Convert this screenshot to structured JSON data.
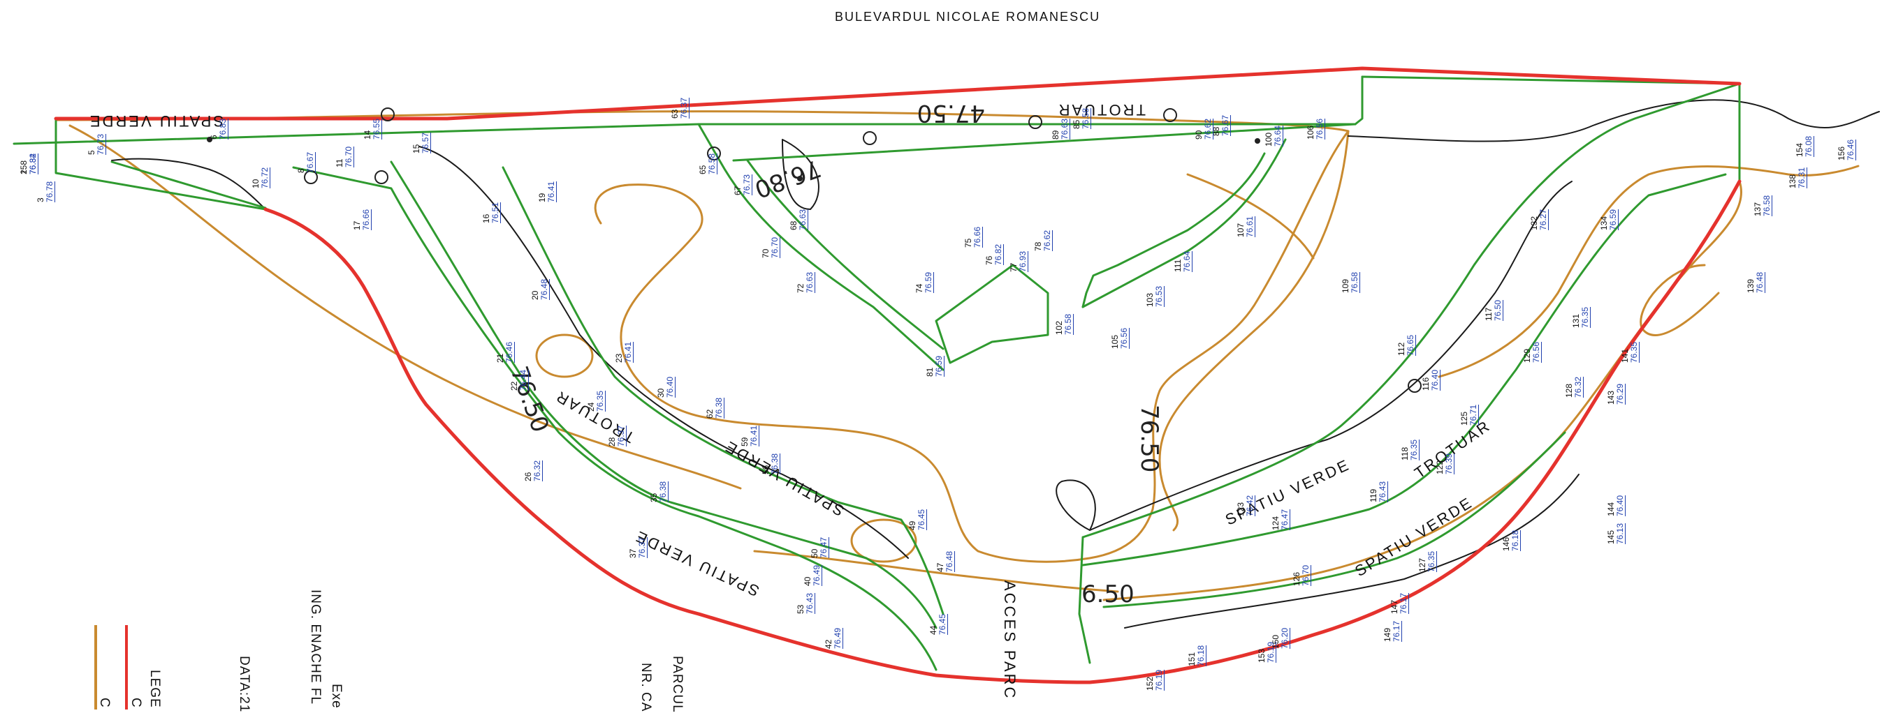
{
  "header": {
    "street": "BULEVARDUL NICOLAE ROMANESCU"
  },
  "zone_labels": {
    "spatiu_verde": "SPATIU VERDE",
    "trotuar": "TROTUAR",
    "acces_parc": "ACCES PARC"
  },
  "contours": {
    "c1": "47.50",
    "c2": "76.50",
    "c3": "76.50",
    "c4": "76.50",
    "c5": "76.80",
    "c6": "6.50"
  },
  "title_block": {
    "executant": "Exe",
    "engineer": "ING. ENACHE FL",
    "date": "DATA:21",
    "project": "PARCUL",
    "number": "NR. CA"
  },
  "legend": {
    "title": "LEGE",
    "item_red": "C",
    "item_orange": "C"
  },
  "colors": {
    "red": "#e5322d",
    "green": "#2f9a2f",
    "orange": "#c98a2f",
    "black": "#1a1a1a",
    "blue": "#1f3fae",
    "magenta": "#d0237a"
  },
  "survey_points": [
    {
      "n": "2",
      "v": "76.84"
    },
    {
      "n": "3",
      "v": "76.78"
    },
    {
      "n": "5",
      "v": "76.73"
    },
    {
      "n": "6",
      "v": "76.83"
    },
    {
      "n": "8",
      "v": "76.67"
    },
    {
      "n": "10",
      "v": "76.72"
    },
    {
      "n": "11",
      "v": "76.70"
    },
    {
      "n": "14",
      "v": "76.55"
    },
    {
      "n": "15",
      "v": "76.57"
    },
    {
      "n": "16",
      "v": "76.51"
    },
    {
      "n": "17",
      "v": "76.66"
    },
    {
      "n": "19",
      "v": "76.41"
    },
    {
      "n": "20",
      "v": "76.48"
    },
    {
      "n": "21",
      "v": "76.46"
    },
    {
      "n": "22",
      "v": "76.44"
    },
    {
      "n": "23",
      "v": "76.41"
    },
    {
      "n": "24",
      "v": "76.35"
    },
    {
      "n": "26",
      "v": "76.32"
    },
    {
      "n": "28",
      "v": "76.37"
    },
    {
      "n": "30",
      "v": "76.40"
    },
    {
      "n": "35",
      "v": "76.38"
    },
    {
      "n": "37",
      "v": "76.37"
    },
    {
      "n": "40",
      "v": "76.49"
    },
    {
      "n": "42",
      "v": "76.49"
    },
    {
      "n": "44",
      "v": "76.45"
    },
    {
      "n": "47",
      "v": "76.48"
    },
    {
      "n": "49",
      "v": "76.45"
    },
    {
      "n": "50",
      "v": "76.47"
    },
    {
      "n": "53",
      "v": "76.43"
    },
    {
      "n": "56",
      "v": "76.38"
    },
    {
      "n": "59",
      "v": "76.41"
    },
    {
      "n": "62",
      "v": "76.38"
    },
    {
      "n": "63",
      "v": "76.37"
    },
    {
      "n": "65",
      "v": "76.58"
    },
    {
      "n": "67",
      "v": "76.73"
    },
    {
      "n": "68",
      "v": "76.63"
    },
    {
      "n": "70",
      "v": "76.70"
    },
    {
      "n": "72",
      "v": "76.63"
    },
    {
      "n": "74",
      "v": "76.59"
    },
    {
      "n": "75",
      "v": "76.66"
    },
    {
      "n": "76",
      "v": "76.82"
    },
    {
      "n": "77",
      "v": "76.93"
    },
    {
      "n": "78",
      "v": "76.62"
    },
    {
      "n": "81",
      "v": "76.59"
    },
    {
      "n": "85",
      "v": "76.58"
    },
    {
      "n": "88",
      "v": "76.67"
    },
    {
      "n": "89",
      "v": "76.63"
    },
    {
      "n": "90",
      "v": "76.62"
    },
    {
      "n": "100",
      "v": "76.64"
    },
    {
      "n": "102",
      "v": "76.58"
    },
    {
      "n": "103",
      "v": "76.53"
    },
    {
      "n": "105",
      "v": "76.56"
    },
    {
      "n": "106",
      "v": "76.56"
    },
    {
      "n": "107",
      "v": "76.61"
    },
    {
      "n": "109",
      "v": "76.58"
    },
    {
      "n": "111",
      "v": "76.64"
    },
    {
      "n": "112",
      "v": "76.65"
    },
    {
      "n": "116",
      "v": "76.40"
    },
    {
      "n": "117",
      "v": "76.50"
    },
    {
      "n": "118",
      "v": "76.35"
    },
    {
      "n": "119",
      "v": "76.43"
    },
    {
      "n": "122",
      "v": "76.39"
    },
    {
      "n": "123",
      "v": "76.42"
    },
    {
      "n": "124",
      "v": "76.47"
    },
    {
      "n": "125",
      "v": "76.71"
    },
    {
      "n": "126",
      "v": "76.70"
    },
    {
      "n": "127",
      "v": "76.35"
    },
    {
      "n": "128",
      "v": "76.32"
    },
    {
      "n": "129",
      "v": "76.56"
    },
    {
      "n": "131",
      "v": "76.35"
    },
    {
      "n": "132",
      "v": "76.27"
    },
    {
      "n": "134",
      "v": "76.59"
    },
    {
      "n": "137",
      "v": "76.58"
    },
    {
      "n": "138",
      "v": "76.31"
    },
    {
      "n": "139",
      "v": "76.48"
    },
    {
      "n": "141",
      "v": "76.35"
    },
    {
      "n": "143",
      "v": "76.29"
    },
    {
      "n": "144",
      "v": "76.40"
    },
    {
      "n": "145",
      "v": "76.13"
    },
    {
      "n": "146",
      "v": "76.18"
    },
    {
      "n": "147",
      "v": "76.17"
    },
    {
      "n": "149",
      "v": "76.17"
    },
    {
      "n": "150",
      "v": "76.20"
    },
    {
      "n": "151",
      "v": "76.18"
    },
    {
      "n": "152",
      "v": "76.19"
    },
    {
      "n": "153",
      "v": "76.19"
    },
    {
      "n": "154",
      "v": "76.08"
    },
    {
      "n": "156",
      "v": "76.46"
    },
    {
      "n": "158",
      "v": "76.32"
    }
  ]
}
